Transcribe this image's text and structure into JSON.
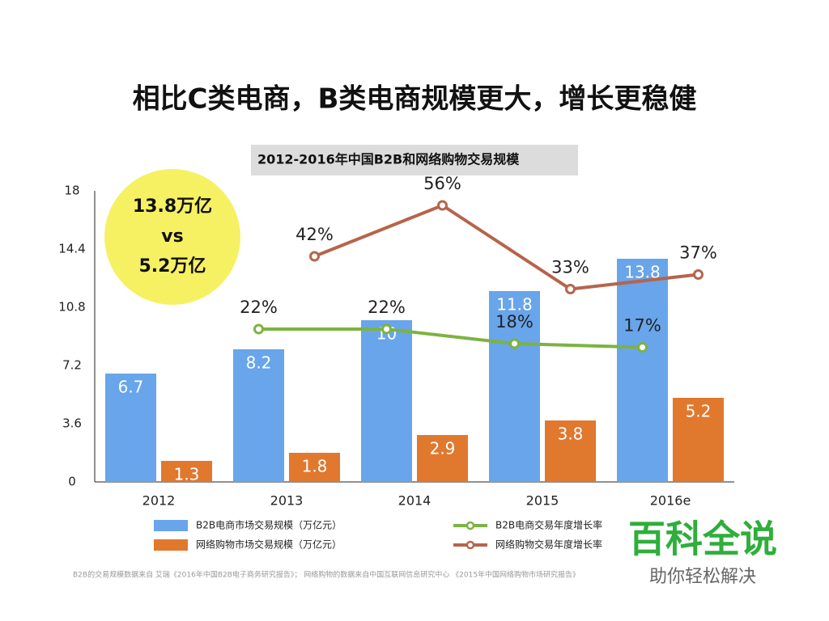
{
  "slide_title": "相比C类电商，B类电商规模更大，增长更稳健",
  "chart_data": {
    "type": "bar",
    "title": "2012-2016年中国B2B和网络购物交易规模",
    "categories": [
      "2012",
      "2013",
      "2014",
      "2015",
      "2016e"
    ],
    "ylim": [
      0,
      18
    ],
    "yticks": [
      0,
      3.6,
      7.2,
      10.8,
      14.4,
      18
    ],
    "y2lim": [
      -20,
      60
    ],
    "series": [
      {
        "name": "B2B电商市场交易规模（万亿元）",
        "color": "#68a5ea",
        "values": [
          6.7,
          8.2,
          10,
          11.8,
          13.8
        ]
      },
      {
        "name": "网络购物市场交易规模（万亿元）",
        "color": "#e0782e",
        "values": [
          1.3,
          1.8,
          2.9,
          3.8,
          5.2
        ]
      },
      {
        "name": "B2B电商交易年度增长率",
        "color": "#7cb342",
        "axis": "y2",
        "values": [
          null,
          22,
          22,
          18,
          17
        ],
        "value_labels": [
          null,
          "22%",
          "22%",
          "18%",
          "17%"
        ]
      },
      {
        "name": "网络购物交易年度增长率",
        "color": "#b5654c",
        "axis": "y2",
        "values": [
          null,
          42,
          56,
          33,
          37
        ],
        "value_labels": [
          null,
          "42%",
          "56%",
          "33%",
          "37%"
        ]
      }
    ],
    "annotation": [
      "13.8万亿",
      "vs",
      "5.2万亿"
    ]
  },
  "source_note": "B2B的交易规模数据来自 艾瑞《2016年中国B2B电子商务研究报告》； 网络购物的数据来自中国互联网信息研究中心 《2015年中国网络购物市场研究报告》",
  "watermark": {
    "title": "百科全说",
    "subtitle": "助你轻松解决"
  }
}
